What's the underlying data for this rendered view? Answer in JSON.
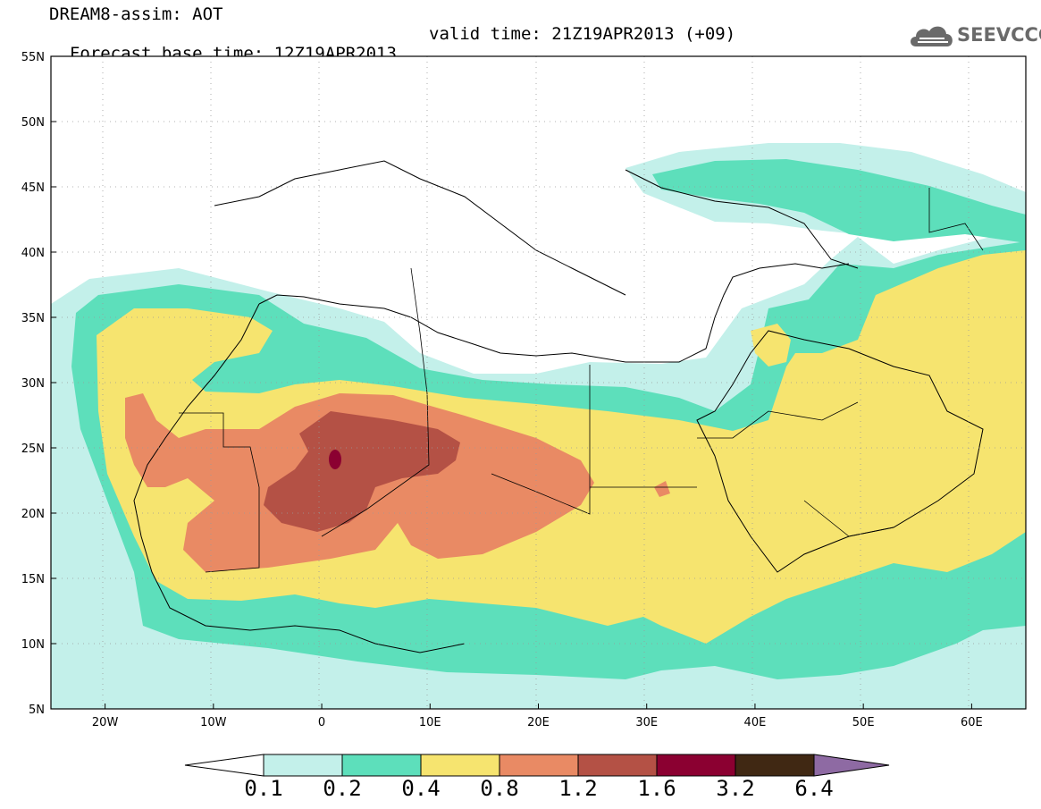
{
  "header": {
    "line1": "DREAM8-assim: AOT",
    "line2_base": "Forecast base time: 12Z19APR2013",
    "line2_valid": "valid time: 21Z19APR2013 (+09)"
  },
  "logo": {
    "text": "SEEVCCC",
    "icon": "cloud-icon"
  },
  "map": {
    "lat_ticks": [
      "55N",
      "50N",
      "45N",
      "40N",
      "35N",
      "30N",
      "25N",
      "20N",
      "15N",
      "10N",
      "5N"
    ],
    "lon_ticks": [
      "20W",
      "10W",
      "0",
      "10E",
      "20E",
      "30E",
      "40E",
      "50E",
      "60E"
    ],
    "lon_range": [
      -25,
      65
    ],
    "lat_range": [
      5,
      55
    ]
  },
  "colorbar": {
    "labels": [
      "0.1",
      "0.2",
      "0.4",
      "0.8",
      "1.2",
      "1.6",
      "3.2",
      "6.4"
    ],
    "colors": [
      "#c3f0ea",
      "#5ddfbb",
      "#f6e46f",
      "#e98a64",
      "#b45145",
      "#8b0031",
      "#402813"
    ],
    "over_color": "#8e6aa3",
    "under_color": "#ffffff"
  }
}
